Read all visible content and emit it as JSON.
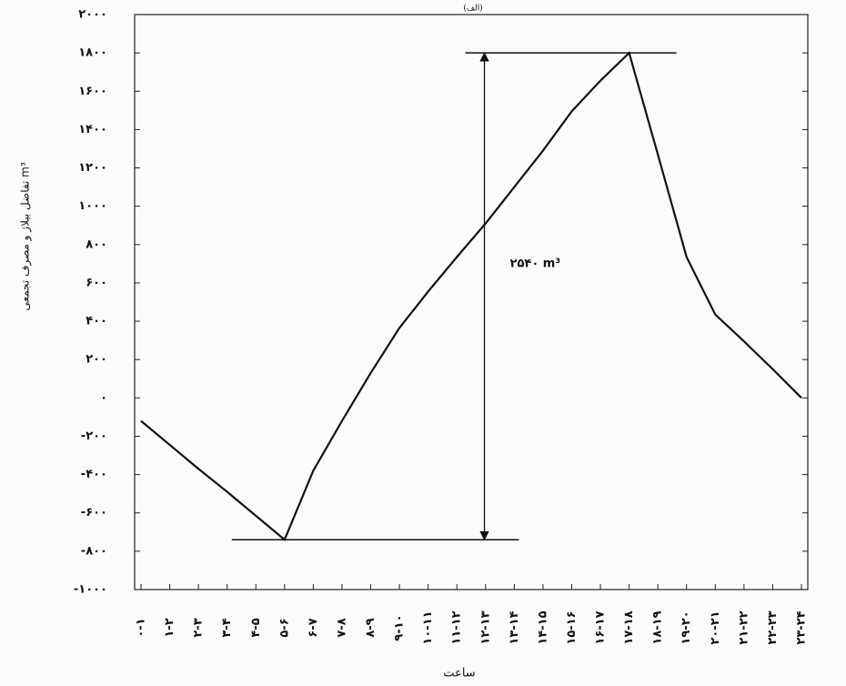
{
  "chart_data": {
    "type": "line",
    "title": "(الف)",
    "y_label": "تفاضل بیلاژ و مصرف تجمعی m³",
    "x_label": "ساعت",
    "annotation": "۲۵۴۰ m³",
    "categories": [
      "۰-۱",
      "۱-۲",
      "۲-۳",
      "۳-۴",
      "۴-۵",
      "۵-۶",
      "۶-۷",
      "۷-۸",
      "۸-۹",
      "۹-۱۰",
      "۱۰-۱۱",
      "۱۱-۱۲",
      "۱۲-۱۳",
      "۱۳-۱۴",
      "۱۴-۱۵",
      "۱۵-۱۶",
      "۱۶-۱۷",
      "۱۷-۱۸",
      "۱۸-۱۹",
      "۱۹-۲۰",
      "۲۰-۲۱",
      "۲۱-۲۲",
      "۲۲-۲۳",
      "۲۳-۲۴"
    ],
    "values": [
      -120,
      -245,
      -370,
      -490,
      -615,
      -740,
      -380,
      -120,
      130,
      365,
      555,
      735,
      910,
      1100,
      1290,
      1495,
      1655,
      1800,
      1270,
      735,
      435,
      295,
      150,
      0
    ],
    "color": "#111111",
    "ylim": [
      -1000,
      2000
    ],
    "yticks": [
      {
        "value": -1000,
        "label": "-۱۰۰۰"
      },
      {
        "value": -800,
        "label": "-۸۰۰"
      },
      {
        "value": -600,
        "label": "-۶۰۰"
      },
      {
        "value": -400,
        "label": "-۴۰۰"
      },
      {
        "value": -200,
        "label": "-۲۰۰"
      },
      {
        "value": 0,
        "label": "۰"
      },
      {
        "value": 200,
        "label": "۲۰۰"
      },
      {
        "value": 400,
        "label": "۴۰۰"
      },
      {
        "value": 600,
        "label": "۶۰۰"
      },
      {
        "value": 800,
        "label": "۸۰۰"
      },
      {
        "value": 1000,
        "label": "۱۰۰۰"
      },
      {
        "value": 1200,
        "label": "۱۲۰۰"
      },
      {
        "value": 1400,
        "label": "۱۴۰۰"
      },
      {
        "value": 1600,
        "label": "۱۶۰۰"
      },
      {
        "value": 1800,
        "label": "۱۸۰۰"
      },
      {
        "value": 2000,
        "label": "۲۰۰۰"
      }
    ],
    "grid": false
  }
}
